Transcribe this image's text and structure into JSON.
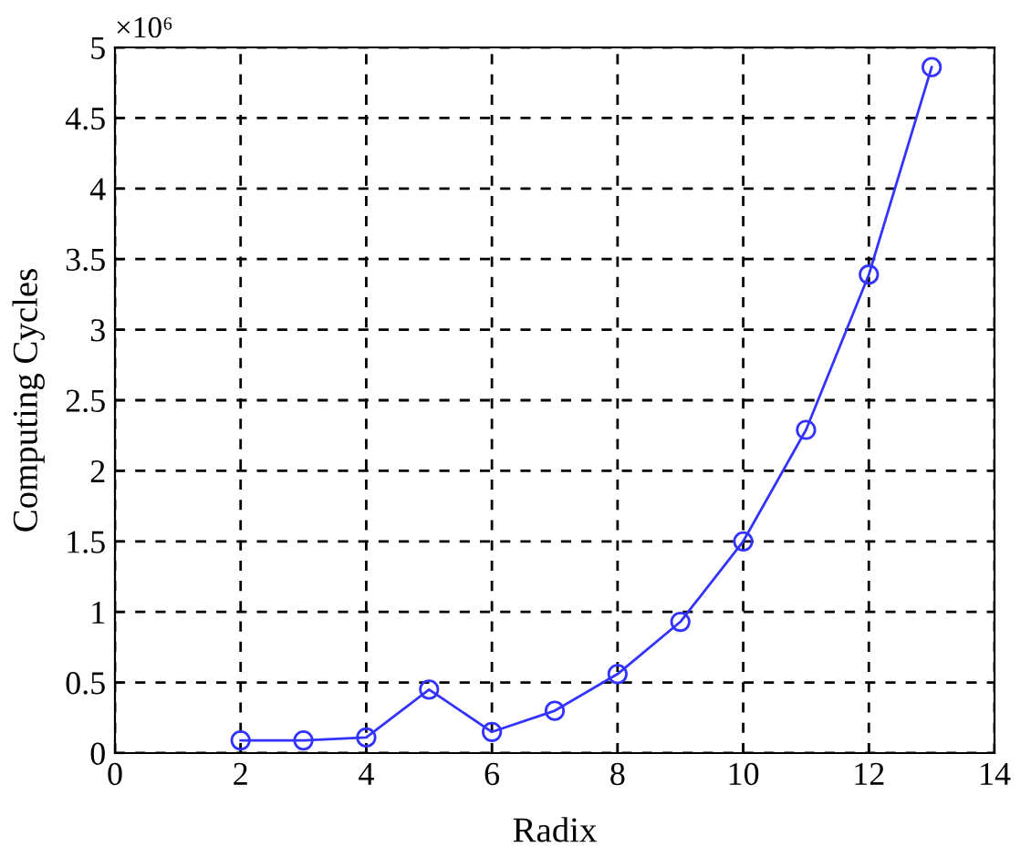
{
  "chart_data": {
    "type": "line",
    "xlabel": "Radix",
    "ylabel": "Computing Cycles",
    "annotations": [
      "×10⁶"
    ],
    "x": [
      2,
      3,
      4,
      5,
      6,
      7,
      8,
      9,
      10,
      11,
      12,
      13
    ],
    "series": [
      {
        "color": "#3333ff",
        "values": [
          0.09,
          0.09,
          0.11,
          0.45,
          0.15,
          0.3,
          0.56,
          0.93,
          1.5,
          2.29,
          3.39,
          4.86
        ]
      }
    ],
    "xlim": [
      0,
      14
    ],
    "xticks": [
      0,
      2,
      4,
      6,
      8,
      10,
      12,
      14
    ],
    "ylim": [
      0,
      5
    ],
    "yticks": [
      0,
      0.5,
      1,
      1.5,
      2,
      2.5,
      3,
      3.5,
      4,
      4.5,
      5
    ],
    "grid": true,
    "marker": "circle",
    "line_style": "solid",
    "legend": false
  }
}
